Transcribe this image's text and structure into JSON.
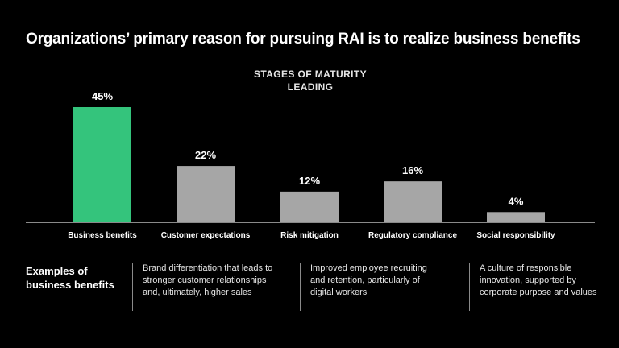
{
  "title": "Organizations’ primary reason for pursuing RAI is to realize business benefits",
  "subtitle_line1": "STAGES OF MATURITY",
  "subtitle_line2": "LEADING",
  "examples": {
    "heading": "Examples of business benefits",
    "items": [
      "Brand differentiation that leads to stronger customer relationships and, ultimately, higher sales",
      "Improved employee recruiting and retention, particularly of digital workers",
      "A culture of responsible innovation, supported by corporate purpose and values"
    ]
  },
  "colors": {
    "highlight": "#34c47c",
    "bar": "#a6a6a6",
    "axis": "#8a8a8a",
    "background": "#000000"
  },
  "chart_data": {
    "type": "bar",
    "categories": [
      "Business benefits",
      "Customer expectations",
      "Risk mitigation",
      "Regulatory compliance",
      "Social responsibility"
    ],
    "values": [
      45,
      22,
      12,
      16,
      4
    ],
    "data_labels": [
      "45%",
      "22%",
      "12%",
      "16%",
      "4%"
    ],
    "highlight_index": 0,
    "ylim": [
      0,
      45
    ],
    "grid": false,
    "title": "Organizations’ primary reason for pursuing RAI is to realize business benefits",
    "subtitle": "STAGES OF MATURITY LEADING",
    "xlabel": "",
    "ylabel": ""
  }
}
